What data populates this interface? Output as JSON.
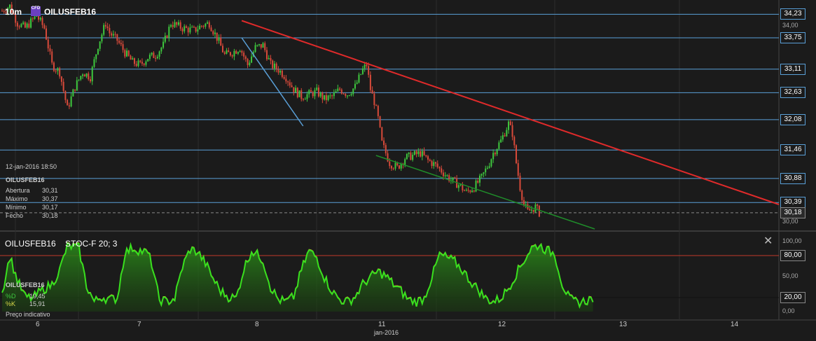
{
  "header": {
    "interval": "10m",
    "cfd_badge": "CFD",
    "symbol": "OILUSFEB16"
  },
  "info_panel": {
    "datetime": "12-jan-2016 18:50",
    "symbol": "OILUSFEB16",
    "rows": [
      {
        "label": "Abertura",
        "value": "30,31"
      },
      {
        "label": "Máximo",
        "value": "30,37"
      },
      {
        "label": "Mínimo",
        "value": "30,17"
      },
      {
        "label": "Fecho",
        "value": "30,18"
      }
    ]
  },
  "oscillator": {
    "title": "OILUSFEB16",
    "indicator": "STOC-F 20; 3",
    "close_label": "✕",
    "symbol": "OILUSFEB16",
    "d_label": "%D",
    "d_value": "19,45",
    "k_label": "%K",
    "k_value": "15,91",
    "note": "Preço indicativo",
    "levels": [
      {
        "value": 80,
        "label": "80,00"
      },
      {
        "value": 20,
        "label": "20,00"
      }
    ],
    "axis_ticks": [
      "100,00",
      "80,00",
      "50,00",
      "20,00",
      "0,00"
    ]
  },
  "colors": {
    "up": "#3ec83e",
    "down": "#d84a3a",
    "hline": "#5aa0d8",
    "resistance": "#e02a2a",
    "support": "#1f8c2a",
    "stoch": "#39e01e"
  },
  "chart_data": {
    "type": "candlestick",
    "ylim": [
      29.85,
      34.45
    ],
    "x_ticks": [
      "6",
      "7",
      "8",
      "11",
      "12",
      "13",
      "14"
    ],
    "x_label": "jan-2016",
    "horizontal_levels": [
      {
        "value": 34.23,
        "label": "34,23"
      },
      {
        "value": 33.75,
        "label": "33,75"
      },
      {
        "value": 33.11,
        "label": "33,11"
      },
      {
        "value": 32.63,
        "label": "32,63"
      },
      {
        "value": 32.08,
        "label": "32,08"
      },
      {
        "value": 31.46,
        "label": "31,46"
      },
      {
        "value": 30.88,
        "label": "30,88"
      },
      {
        "value": 30.39,
        "label": "30,39"
      }
    ],
    "last_price": {
      "value": 30.18,
      "label": "30,18"
    },
    "axis_ticks": [
      {
        "value": 34.0,
        "label": "34,00"
      },
      {
        "value": 30.0,
        "label": "30,00"
      }
    ],
    "price_path": [
      [
        0,
        34.3
      ],
      [
        2,
        34.4
      ],
      [
        4,
        34.05
      ],
      [
        6,
        33.95
      ],
      [
        9,
        34.2
      ],
      [
        11,
        33.95
      ],
      [
        13,
        33.2
      ],
      [
        15,
        33.05
      ],
      [
        17,
        32.3
      ],
      [
        19,
        32.75
      ],
      [
        21,
        33.05
      ],
      [
        23,
        32.95
      ],
      [
        25,
        33.6
      ],
      [
        27,
        34.05
      ],
      [
        28,
        33.85
      ],
      [
        30,
        33.7
      ],
      [
        32,
        33.45
      ],
      [
        34,
        33.25
      ],
      [
        36,
        33.2
      ],
      [
        38,
        33.35
      ],
      [
        40,
        33.4
      ],
      [
        42,
        33.6
      ],
      [
        44,
        34.05
      ],
      [
        47,
        33.95
      ],
      [
        50,
        33.9
      ],
      [
        52,
        34.0
      ],
      [
        54,
        34.05
      ],
      [
        56,
        33.75
      ],
      [
        58,
        33.4
      ],
      [
        60,
        33.45
      ],
      [
        62,
        33.55
      ],
      [
        64,
        33.2
      ],
      [
        66,
        33.55
      ],
      [
        68,
        33.6
      ],
      [
        70,
        33.2
      ],
      [
        72,
        33.1
      ],
      [
        74,
        32.95
      ],
      [
        76,
        32.7
      ],
      [
        78,
        32.55
      ],
      [
        80,
        32.6
      ],
      [
        82,
        32.65
      ],
      [
        84,
        32.5
      ],
      [
        86,
        32.55
      ],
      [
        88,
        32.7
      ],
      [
        90,
        32.6
      ],
      [
        92,
        32.75
      ],
      [
        94,
        33.1
      ],
      [
        95,
        33.2
      ],
      [
        96,
        32.7
      ],
      [
        97,
        32.45
      ],
      [
        98,
        32.1
      ],
      [
        99,
        31.6
      ],
      [
        100,
        31.4
      ],
      [
        101,
        31.2
      ],
      [
        103,
        31.1
      ],
      [
        105,
        31.3
      ],
      [
        107,
        31.35
      ],
      [
        109,
        31.4
      ],
      [
        111,
        31.25
      ],
      [
        113,
        31.15
      ],
      [
        115,
        31.0
      ],
      [
        117,
        30.85
      ],
      [
        119,
        30.75
      ],
      [
        121,
        30.6
      ],
      [
        123,
        30.7
      ],
      [
        125,
        30.9
      ],
      [
        127,
        31.2
      ],
      [
        128,
        31.4
      ],
      [
        130,
        31.65
      ],
      [
        132,
        32.0
      ],
      [
        133,
        31.8
      ],
      [
        134,
        31.2
      ],
      [
        135,
        30.7
      ],
      [
        136,
        30.35
      ],
      [
        137,
        30.2
      ],
      [
        138,
        30.25
      ],
      [
        139,
        30.3
      ],
      [
        140,
        30.18
      ]
    ],
    "trendlines": [
      {
        "name": "resistance",
        "from": [
          63,
          34.1
        ],
        "to": [
          203,
          30.35
        ]
      },
      {
        "name": "channel",
        "from": [
          63,
          33.75
        ],
        "to": [
          79,
          31.95
        ]
      },
      {
        "name": "support",
        "from": [
          98,
          31.35
        ],
        "to": [
          155,
          29.85
        ]
      }
    ],
    "stoch_path": [
      [
        0,
        28
      ],
      [
        2,
        80
      ],
      [
        4,
        45
      ],
      [
        6,
        22
      ],
      [
        8,
        20
      ],
      [
        10,
        30
      ],
      [
        13,
        40
      ],
      [
        15,
        60
      ],
      [
        17,
        95
      ],
      [
        20,
        92
      ],
      [
        22,
        38
      ],
      [
        24,
        15
      ],
      [
        26,
        22
      ],
      [
        28,
        18
      ],
      [
        30,
        20
      ],
      [
        32,
        85
      ],
      [
        34,
        92
      ],
      [
        36,
        88
      ],
      [
        38,
        84
      ],
      [
        39,
        70
      ],
      [
        40,
        42
      ],
      [
        41,
        18
      ],
      [
        43,
        15
      ],
      [
        45,
        20
      ],
      [
        47,
        65
      ],
      [
        49,
        90
      ],
      [
        51,
        86
      ],
      [
        53,
        70
      ],
      [
        55,
        48
      ],
      [
        57,
        30
      ],
      [
        59,
        22
      ],
      [
        61,
        20
      ],
      [
        63,
        62
      ],
      [
        65,
        88
      ],
      [
        67,
        80
      ],
      [
        68,
        74
      ],
      [
        70,
        36
      ],
      [
        72,
        18
      ],
      [
        74,
        15
      ],
      [
        76,
        22
      ],
      [
        78,
        60
      ],
      [
        80,
        88
      ],
      [
        82,
        78
      ],
      [
        84,
        50
      ],
      [
        86,
        30
      ],
      [
        88,
        18
      ],
      [
        90,
        15
      ],
      [
        92,
        22
      ],
      [
        94,
        40
      ],
      [
        96,
        50
      ],
      [
        98,
        58
      ],
      [
        100,
        52
      ],
      [
        102,
        40
      ],
      [
        104,
        30
      ],
      [
        106,
        18
      ],
      [
        108,
        15
      ],
      [
        110,
        20
      ],
      [
        112,
        50
      ],
      [
        114,
        82
      ],
      [
        116,
        78
      ],
      [
        118,
        72
      ],
      [
        120,
        60
      ],
      [
        122,
        45
      ],
      [
        124,
        33
      ],
      [
        126,
        20
      ],
      [
        128,
        15
      ],
      [
        130,
        20
      ],
      [
        132,
        35
      ],
      [
        134,
        55
      ],
      [
        136,
        74
      ],
      [
        138,
        92
      ],
      [
        140,
        96
      ],
      [
        142,
        88
      ],
      [
        144,
        84
      ],
      [
        146,
        40
      ],
      [
        148,
        18
      ],
      [
        150,
        14
      ],
      [
        152,
        16
      ],
      [
        154,
        20
      ]
    ]
  }
}
